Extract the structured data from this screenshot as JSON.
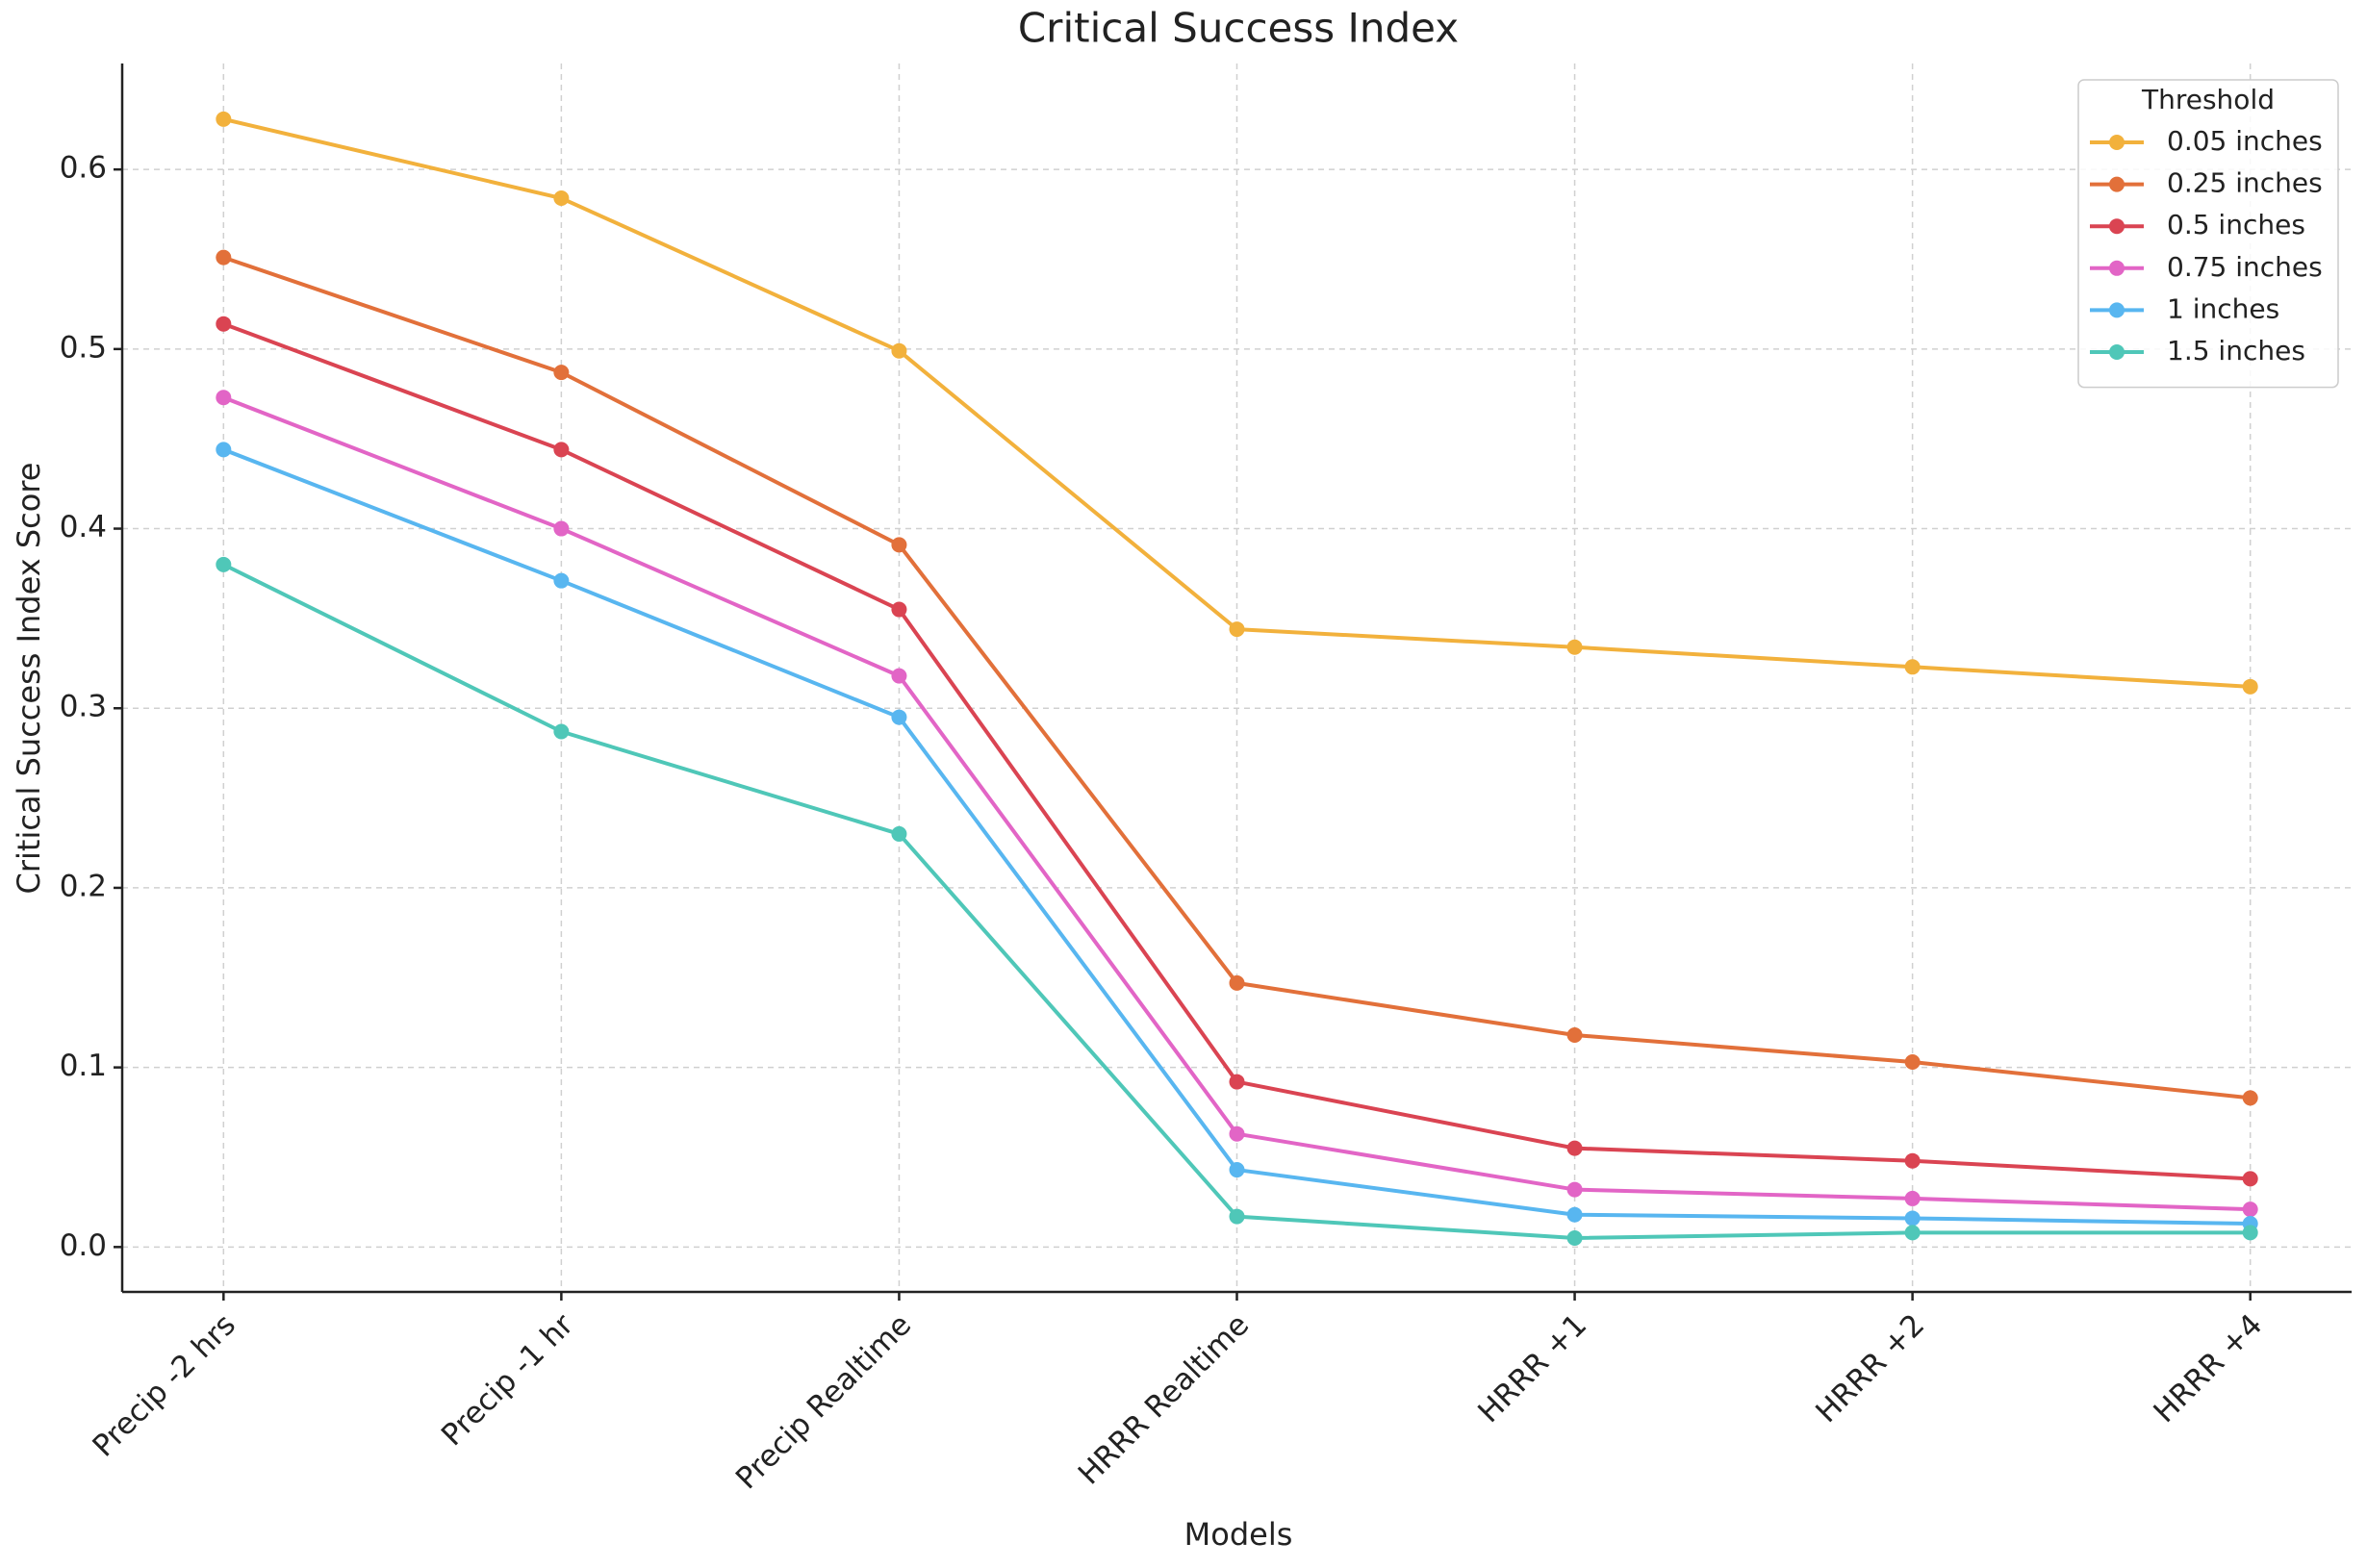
{
  "chart_data": {
    "type": "line",
    "title": "Critical Success Index",
    "x_label": "Models",
    "y_label": "Critical Success Index Score",
    "categories": [
      "Precip -2 hrs",
      "Precip -1 hr",
      "Precip Realtime",
      "HRRR Realtime",
      "HRRR +1",
      "HRRR +2",
      "HRRR +4"
    ],
    "series": [
      {
        "name": "0.05 inches",
        "color": "#f2b13c",
        "values": [
          0.628,
          0.584,
          0.499,
          0.344,
          0.334,
          0.323,
          0.312
        ]
      },
      {
        "name": "0.25 inches",
        "color": "#e2703a",
        "values": [
          0.551,
          0.487,
          0.391,
          0.147,
          0.118,
          0.103,
          0.083
        ]
      },
      {
        "name": "0.5 inches",
        "color": "#da4452",
        "values": [
          0.514,
          0.444,
          0.355,
          0.092,
          0.055,
          0.048,
          0.038
        ]
      },
      {
        "name": "0.75 inches",
        "color": "#e265c6",
        "values": [
          0.473,
          0.4,
          0.318,
          0.063,
          0.032,
          0.027,
          0.021
        ]
      },
      {
        "name": "1 inches",
        "color": "#58b6f0",
        "values": [
          0.444,
          0.371,
          0.295,
          0.043,
          0.018,
          0.016,
          0.013
        ]
      },
      {
        "name": "1.5 inches",
        "color": "#4fc7b8",
        "values": [
          0.38,
          0.287,
          0.23,
          0.017,
          0.005,
          0.008,
          0.008
        ]
      }
    ],
    "ylim": [
      -0.025,
      0.659
    ],
    "yticks": [
      {
        "value": 0,
        "label": "0.0"
      },
      0.1,
      0.2,
      0.3,
      0.4,
      0.5,
      0.6
    ],
    "grid": true,
    "legend_title": "Threshold",
    "legend_position": "upper right"
  }
}
